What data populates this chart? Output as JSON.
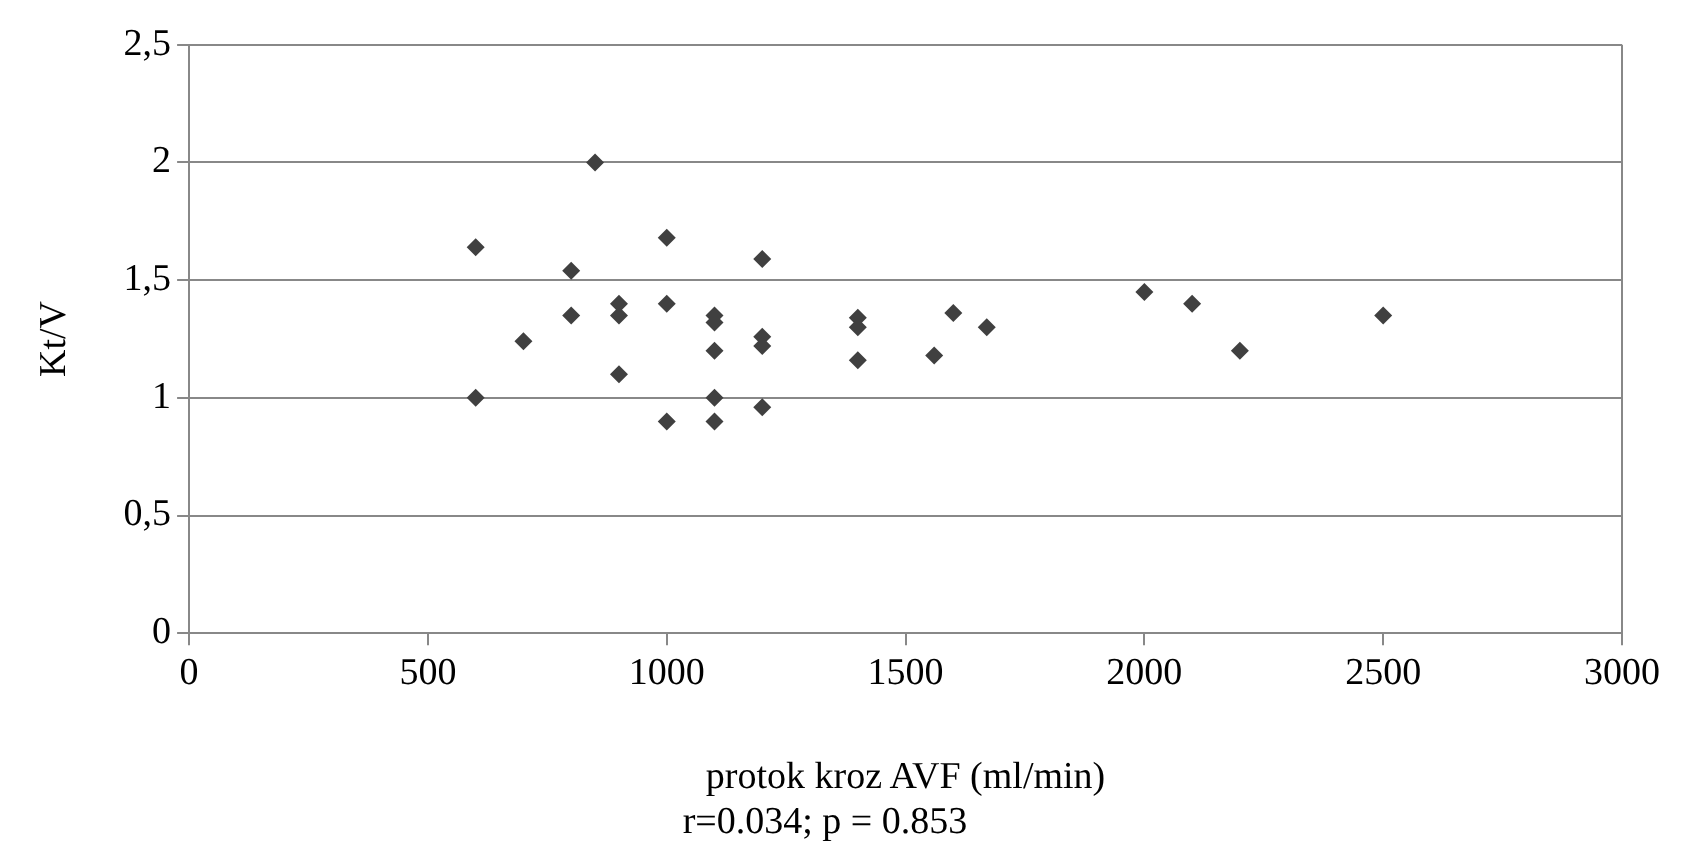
{
  "chart_data": {
    "type": "scatter",
    "xlabel": "protok kroz AVF (ml/min)",
    "ylabel": "Kt/V",
    "annotations": [
      "r=0.034; p = 0.853"
    ],
    "x": [
      600,
      600,
      700,
      800,
      800,
      850,
      900,
      900,
      900,
      1000,
      1000,
      1000,
      1100,
      1100,
      1100,
      1100,
      1100,
      1200,
      1200,
      1200,
      1200,
      1400,
      1400,
      1400,
      1560,
      1600,
      1670,
      2000,
      2100,
      2200,
      2500
    ],
    "values": [
      1.64,
      1.0,
      1.24,
      1.54,
      1.35,
      2.0,
      1.4,
      1.35,
      1.1,
      1.68,
      1.4,
      0.9,
      1.35,
      1.32,
      1.2,
      1.0,
      0.9,
      1.59,
      1.26,
      1.22,
      0.96,
      1.34,
      1.3,
      1.16,
      1.18,
      1.36,
      1.3,
      1.45,
      1.4,
      1.2,
      1.35
    ],
    "color": "#404040",
    "marker": "diamond",
    "xlim": [
      0,
      3000
    ],
    "xticks": [
      0,
      500,
      1000,
      1500,
      2000,
      2500,
      3000
    ],
    "ylim": [
      0,
      2.5
    ],
    "yticks": [
      {
        "value": 0,
        "label": "0"
      },
      {
        "value": 0.5,
        "label": "0,5"
      },
      {
        "value": 1,
        "label": "1"
      },
      {
        "value": 1.5,
        "label": "1,5"
      },
      {
        "value": 2,
        "label": "2"
      },
      {
        "value": 2.5,
        "label": "2,5"
      }
    ],
    "grid": "y",
    "legend": false
  }
}
